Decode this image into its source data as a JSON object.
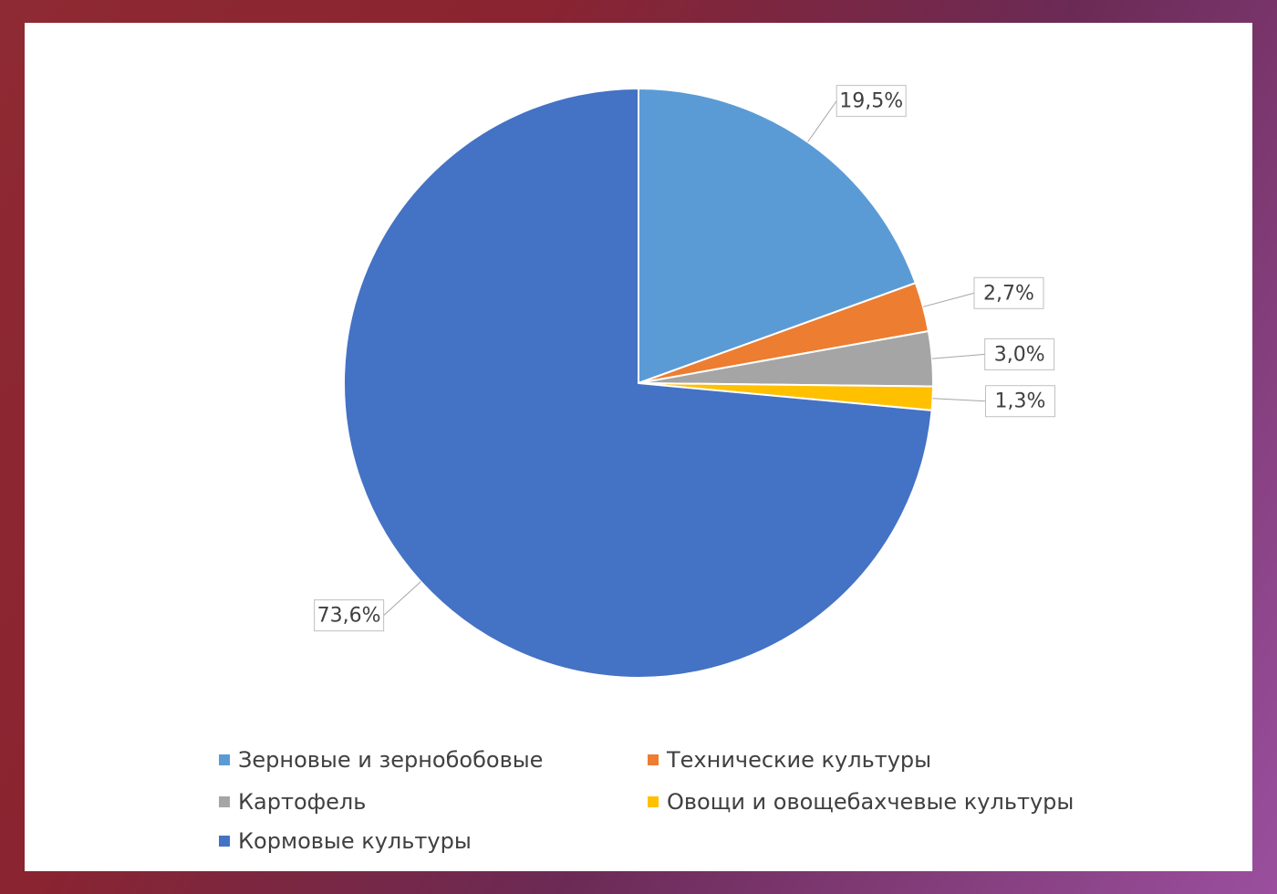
{
  "chart_data": {
    "type": "pie",
    "categories": [
      "Зерновые и зернобобовые",
      "Технические культуры",
      "Картофель",
      "Овощи и овощебахчевые культуры",
      "Кормовые культуры"
    ],
    "values": [
      19.5,
      2.7,
      3.0,
      1.3,
      73.6
    ],
    "value_labels": [
      "19,5%",
      "2,7%",
      "3,0%",
      "1,3%",
      "73,6%"
    ],
    "colors": [
      "#5b9bd5",
      "#ed7d31",
      "#a5a5a5",
      "#ffc000",
      "#4472c4"
    ],
    "legend": "bottom"
  }
}
